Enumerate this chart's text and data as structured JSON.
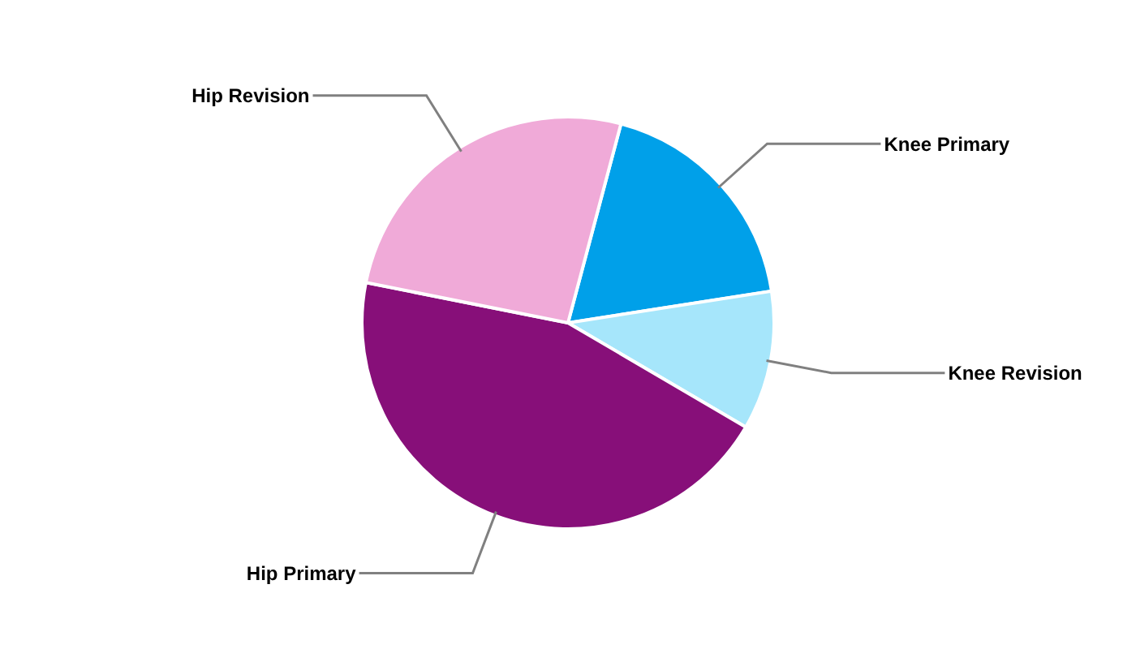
{
  "chart_data": {
    "type": "pie",
    "categories": [
      "Knee Primary",
      "Knee Revision",
      "Hip Primary",
      "Hip Revision"
    ],
    "values": [
      18.4,
      10.9,
      44.7,
      26.0
    ],
    "colors": [
      "#00a0e9",
      "#a6e6fb",
      "#870f79",
      "#f0aad8"
    ],
    "legend": false
  }
}
